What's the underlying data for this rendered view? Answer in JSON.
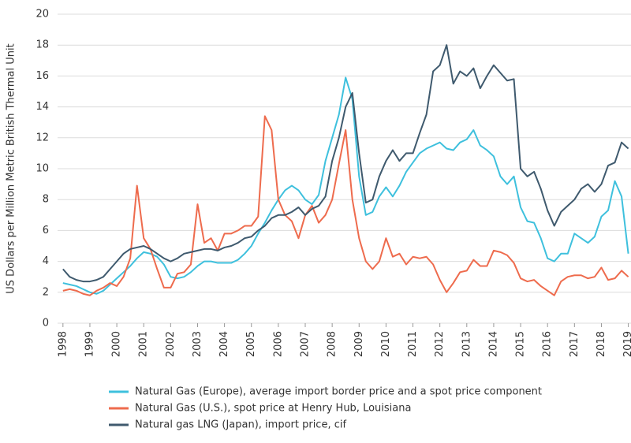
{
  "chart_data": {
    "type": "line",
    "ylabel": "US Dollars per Million Metric British Thermal Unit",
    "x": [
      1998,
      1998.25,
      1998.5,
      1998.75,
      1999,
      1999.25,
      1999.5,
      1999.75,
      2000,
      2000.25,
      2000.5,
      2000.75,
      2001,
      2001.25,
      2001.5,
      2001.75,
      2002,
      2002.25,
      2002.5,
      2002.75,
      2003,
      2003.25,
      2003.5,
      2003.75,
      2004,
      2004.25,
      2004.5,
      2004.75,
      2005,
      2005.25,
      2005.5,
      2005.75,
      2006,
      2006.25,
      2006.5,
      2006.75,
      2007,
      2007.25,
      2007.5,
      2007.75,
      2008,
      2008.25,
      2008.5,
      2008.75,
      2009,
      2009.25,
      2009.5,
      2009.75,
      2010,
      2010.25,
      2010.5,
      2010.75,
      2011,
      2011.25,
      2011.5,
      2011.75,
      2012,
      2012.25,
      2012.5,
      2012.75,
      2013,
      2013.25,
      2013.5,
      2013.75,
      2014,
      2014.25,
      2014.5,
      2014.75,
      2015,
      2015.25,
      2015.5,
      2015.75,
      2016,
      2016.25,
      2016.5,
      2016.75,
      2017,
      2017.25,
      2017.5,
      2017.75,
      2018,
      2018.25,
      2018.5,
      2018.75,
      2019
    ],
    "series": [
      {
        "name": "Natural Gas (Europe), average import border price and a spot price component",
        "color": "#3ec0dd",
        "values": [
          2.6,
          2.5,
          2.4,
          2.2,
          2.0,
          1.9,
          2.1,
          2.5,
          2.9,
          3.3,
          3.7,
          4.2,
          4.6,
          4.5,
          4.3,
          3.8,
          3.0,
          2.9,
          3.0,
          3.3,
          3.7,
          4.0,
          4.0,
          3.9,
          3.9,
          3.9,
          4.1,
          4.5,
          5.0,
          5.8,
          6.5,
          7.3,
          8.0,
          8.6,
          8.9,
          8.6,
          8.0,
          7.7,
          8.3,
          10.5,
          12.0,
          13.5,
          15.9,
          14.5,
          9.5,
          7.0,
          7.2,
          8.2,
          8.8,
          8.2,
          8.9,
          9.8,
          10.4,
          11.0,
          11.3,
          11.5,
          11.7,
          11.3,
          11.2,
          11.7,
          11.9,
          12.5,
          11.5,
          11.2,
          10.8,
          9.5,
          9.0,
          9.5,
          7.5,
          6.6,
          6.5,
          5.5,
          4.2,
          4.0,
          4.5,
          4.5,
          5.8,
          5.5,
          5.2,
          5.6,
          6.9,
          7.3,
          9.2,
          8.2,
          4.5
        ]
      },
      {
        "name": "Natural Gas (U.S.), spot price at Henry Hub, Louisiana",
        "color": "#ee6b4d",
        "values": [
          2.1,
          2.2,
          2.1,
          1.9,
          1.8,
          2.1,
          2.3,
          2.6,
          2.4,
          3.0,
          4.2,
          8.9,
          5.5,
          4.8,
          3.5,
          2.3,
          2.3,
          3.2,
          3.3,
          3.8,
          7.7,
          5.2,
          5.5,
          4.7,
          5.8,
          5.8,
          6.0,
          6.3,
          6.3,
          6.9,
          13.4,
          12.5,
          8.0,
          7.0,
          6.6,
          5.5,
          7.0,
          7.6,
          6.5,
          7.0,
          8.0,
          10.3,
          12.5,
          8.0,
          5.5,
          4.0,
          3.5,
          4.0,
          5.5,
          4.3,
          4.5,
          3.8,
          4.3,
          4.2,
          4.3,
          3.8,
          2.8,
          2.0,
          2.6,
          3.3,
          3.4,
          4.1,
          3.7,
          3.7,
          4.7,
          4.6,
          4.4,
          3.9,
          2.9,
          2.7,
          2.8,
          2.4,
          2.1,
          1.8,
          2.7,
          3.0,
          3.1,
          3.1,
          2.9,
          3.0,
          3.6,
          2.8,
          2.9,
          3.4,
          3.0
        ]
      },
      {
        "name": "Natural gas LNG (Japan), import price, cif",
        "color": "#3f5a6e",
        "values": [
          3.5,
          3.0,
          2.8,
          2.7,
          2.7,
          2.8,
          3.0,
          3.5,
          4.0,
          4.5,
          4.8,
          4.9,
          5.0,
          4.8,
          4.5,
          4.2,
          4.0,
          4.2,
          4.5,
          4.6,
          4.7,
          4.8,
          4.8,
          4.7,
          4.9,
          5.0,
          5.2,
          5.5,
          5.6,
          6.0,
          6.3,
          6.8,
          7.0,
          7.0,
          7.2,
          7.5,
          7.0,
          7.4,
          7.6,
          8.2,
          10.5,
          12.0,
          14.0,
          14.9,
          11.0,
          7.8,
          8.0,
          9.5,
          10.5,
          11.2,
          10.5,
          11.0,
          11.0,
          12.3,
          13.5,
          16.3,
          16.7,
          18.0,
          15.5,
          16.3,
          16.0,
          16.5,
          15.2,
          16.0,
          16.7,
          16.2,
          15.7,
          15.8,
          10.0,
          9.5,
          9.8,
          8.7,
          7.3,
          6.3,
          7.2,
          7.6,
          8.0,
          8.7,
          9.0,
          8.5,
          9.0,
          10.2,
          10.4,
          11.7,
          11.3
        ]
      }
    ],
    "xlim": [
      1997.8,
      2019.1
    ],
    "xticks": [
      1998,
      1999,
      2000,
      2001,
      2002,
      2003,
      2004,
      2005,
      2006,
      2007,
      2008,
      2009,
      2010,
      2011,
      2012,
      2013,
      2014,
      2015,
      2016,
      2017,
      2018,
      2019
    ],
    "ylim": [
      0,
      20
    ],
    "yticks": [
      0,
      2,
      4,
      6,
      8,
      10,
      12,
      14,
      16,
      18,
      20
    ],
    "grid": true
  }
}
